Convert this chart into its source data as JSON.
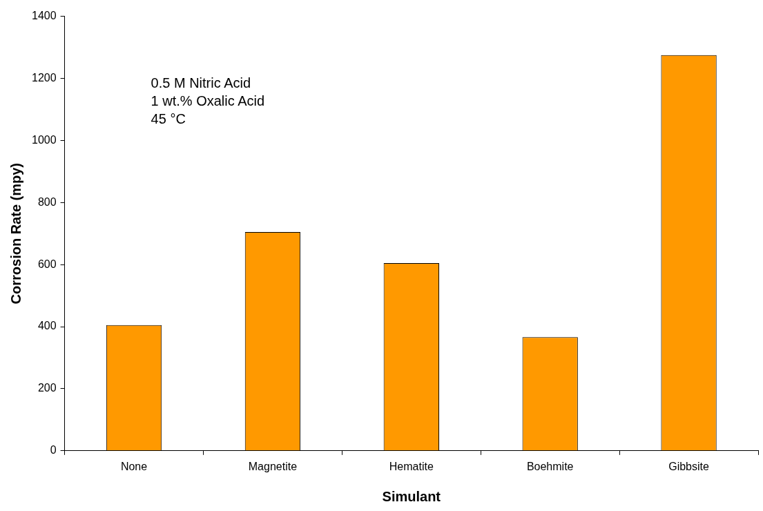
{
  "chart_data": {
    "type": "bar",
    "xlabel": "Simulant",
    "ylabel": "Corrosion Rate (mpy)",
    "categories": [
      "None",
      "Magnetite",
      "Hematite",
      "Boehmite",
      "Gibbsite"
    ],
    "values": [
      405,
      705,
      605,
      366,
      1275
    ],
    "color": "#ff9900",
    "ylim": [
      0,
      1400
    ],
    "yticks": [
      0,
      200,
      400,
      600,
      800,
      1000,
      1200,
      1400
    ],
    "annotations": [
      "0.5 M Nitric Acid",
      "1 wt.% Oxalic Acid",
      "45 °C"
    ],
    "legend": false
  }
}
